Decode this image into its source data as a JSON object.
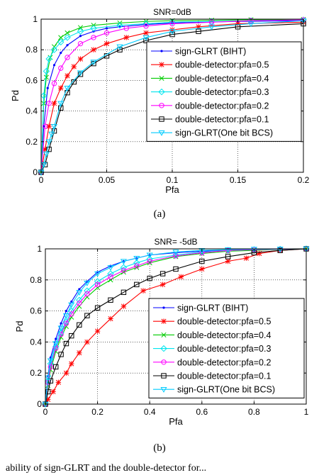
{
  "chart_data": [
    {
      "type": "line",
      "title": "SNR=0dB",
      "xlabel": "Pfa",
      "ylabel": "Pd",
      "xlim": [
        0,
        0.2
      ],
      "ylim": [
        0,
        1
      ],
      "xticks": [
        0,
        0.05,
        0.1,
        0.15,
        0.2
      ],
      "xtick_labels": [
        "0",
        "0.05",
        "0.1",
        "0.15",
        "0.2"
      ],
      "yticks": [
        0,
        0.2,
        0.4,
        0.6,
        0.8,
        1
      ],
      "ytick_labels": [
        "0",
        "0.2",
        "0.4",
        "0.6",
        "0.8",
        "1"
      ],
      "grid": true,
      "legend_position": "right",
      "caption": "(a)",
      "series": [
        {
          "name": "sign-GLRT (BIHT)",
          "color": "#0000ff",
          "marker": "dot",
          "x": [
            0,
            0.002,
            0.005,
            0.01,
            0.015,
            0.02,
            0.03,
            0.04,
            0.05,
            0.06,
            0.08,
            0.1,
            0.12,
            0.15,
            0.2
          ],
          "y": [
            0,
            0.3,
            0.55,
            0.7,
            0.78,
            0.83,
            0.89,
            0.92,
            0.94,
            0.95,
            0.965,
            0.975,
            0.98,
            0.985,
            0.99
          ]
        },
        {
          "name": "double-detector:pfa=0.5",
          "color": "#ff0000",
          "marker": "star",
          "x": [
            0,
            0.003,
            0.006,
            0.01,
            0.015,
            0.02,
            0.025,
            0.03,
            0.04,
            0.05,
            0.065,
            0.08,
            0.1,
            0.12,
            0.15,
            0.2
          ],
          "y": [
            0,
            0.15,
            0.3,
            0.45,
            0.55,
            0.63,
            0.69,
            0.74,
            0.8,
            0.84,
            0.88,
            0.91,
            0.93,
            0.95,
            0.97,
            0.98
          ]
        },
        {
          "name": "double-detector:pfa=0.4",
          "color": "#00cc00",
          "marker": "x",
          "x": [
            0,
            0.002,
            0.004,
            0.007,
            0.01,
            0.015,
            0.02,
            0.03,
            0.04,
            0.06,
            0.08,
            0.1,
            0.13,
            0.16,
            0.2
          ],
          "y": [
            0,
            0.45,
            0.62,
            0.75,
            0.82,
            0.88,
            0.91,
            0.945,
            0.96,
            0.975,
            0.985,
            0.99,
            0.993,
            0.996,
            0.998
          ]
        },
        {
          "name": "double-detector:pfa=0.3",
          "color": "#00e5ee",
          "marker": "diamond",
          "x": [
            0,
            0.002,
            0.004,
            0.006,
            0.01,
            0.015,
            0.02,
            0.03,
            0.04,
            0.06,
            0.08,
            0.1,
            0.13,
            0.16,
            0.2
          ],
          "y": [
            0,
            0.5,
            0.66,
            0.74,
            0.8,
            0.85,
            0.88,
            0.92,
            0.94,
            0.96,
            0.97,
            0.98,
            0.985,
            0.99,
            0.995
          ]
        },
        {
          "name": "double-detector:pfa=0.2",
          "color": "#ff00ff",
          "marker": "circle",
          "x": [
            0,
            0.003,
            0.006,
            0.01,
            0.015,
            0.02,
            0.03,
            0.04,
            0.05,
            0.065,
            0.08,
            0.1,
            0.13,
            0.16,
            0.2
          ],
          "y": [
            0,
            0.3,
            0.45,
            0.58,
            0.68,
            0.75,
            0.84,
            0.88,
            0.91,
            0.94,
            0.955,
            0.97,
            0.98,
            0.99,
            0.995
          ]
        },
        {
          "name": "double-detector:pfa=0.1",
          "color": "#000000",
          "marker": "square",
          "x": [
            0,
            0.003,
            0.006,
            0.01,
            0.015,
            0.02,
            0.025,
            0.03,
            0.04,
            0.05,
            0.06,
            0.08,
            0.1,
            0.12,
            0.15,
            0.2
          ],
          "y": [
            0,
            0.05,
            0.15,
            0.27,
            0.42,
            0.52,
            0.59,
            0.64,
            0.71,
            0.76,
            0.8,
            0.86,
            0.9,
            0.92,
            0.95,
            0.97
          ]
        },
        {
          "name": "sign-GLRT(One bit BCS)",
          "color": "#00ccff",
          "marker": "triangle-down",
          "x": [
            0,
            0.002,
            0.004,
            0.006,
            0.008,
            0.01,
            0.015,
            0.02,
            0.03,
            0.04,
            0.06,
            0.08,
            0.1,
            0.13,
            0.16,
            0.2
          ],
          "y": [
            0,
            0.05,
            0.12,
            0.2,
            0.25,
            0.3,
            0.45,
            0.55,
            0.65,
            0.72,
            0.82,
            0.88,
            0.92,
            0.95,
            0.97,
            0.99
          ]
        }
      ]
    },
    {
      "type": "line",
      "title": "SNR= -5dB",
      "xlabel": "Pfa",
      "ylabel": "Pd",
      "xlim": [
        0,
        1
      ],
      "ylim": [
        0,
        1
      ],
      "xticks": [
        0,
        0.2,
        0.4,
        0.6,
        0.8,
        1
      ],
      "xtick_labels": [
        "0",
        "0.2",
        "0.4",
        "0.6",
        "0.8",
        "1"
      ],
      "yticks": [
        0,
        0.2,
        0.4,
        0.6,
        0.8,
        1
      ],
      "ytick_labels": [
        "0",
        "0.2",
        "0.4",
        "0.6",
        "0.8",
        "1"
      ],
      "grid": true,
      "legend_position": "right",
      "caption": "(b)",
      "series": [
        {
          "name": "sign-GLRT (BIHT)",
          "color": "#0000ff",
          "marker": "dot",
          "x": [
            0,
            0.01,
            0.02,
            0.04,
            0.06,
            0.08,
            0.1,
            0.13,
            0.16,
            0.2,
            0.25,
            0.3,
            0.35,
            0.4,
            0.5,
            0.6,
            0.7,
            0.8,
            0.9,
            1
          ],
          "y": [
            0,
            0.18,
            0.3,
            0.42,
            0.52,
            0.6,
            0.66,
            0.74,
            0.79,
            0.85,
            0.89,
            0.92,
            0.94,
            0.96,
            0.975,
            0.985,
            0.99,
            0.995,
            0.998,
            1
          ]
        },
        {
          "name": "double-detector:pfa=0.5",
          "color": "#ff0000",
          "marker": "star",
          "x": [
            0,
            0.01,
            0.03,
            0.05,
            0.08,
            0.1,
            0.13,
            0.16,
            0.2,
            0.25,
            0.3,
            0.375,
            0.45,
            0.52,
            0.6,
            0.7,
            0.77,
            0.82,
            0.9,
            1
          ],
          "y": [
            0,
            0.03,
            0.08,
            0.14,
            0.2,
            0.26,
            0.33,
            0.4,
            0.47,
            0.55,
            0.63,
            0.73,
            0.77,
            0.82,
            0.87,
            0.92,
            0.94,
            0.97,
            0.99,
            1
          ]
        },
        {
          "name": "double-detector:pfa=0.4",
          "color": "#00cc00",
          "marker": "x",
          "x": [
            0,
            0.01,
            0.02,
            0.04,
            0.06,
            0.08,
            0.1,
            0.13,
            0.16,
            0.2,
            0.25,
            0.3,
            0.35,
            0.4,
            0.5,
            0.6,
            0.7,
            0.8,
            0.9,
            1
          ],
          "y": [
            0,
            0.12,
            0.22,
            0.34,
            0.43,
            0.5,
            0.56,
            0.63,
            0.69,
            0.75,
            0.8,
            0.85,
            0.88,
            0.91,
            0.95,
            0.97,
            0.985,
            0.99,
            0.997,
            1
          ]
        },
        {
          "name": "double-detector:pfa=0.3",
          "color": "#00e5ee",
          "marker": "diamond",
          "x": [
            0,
            0.01,
            0.02,
            0.04,
            0.06,
            0.08,
            0.1,
            0.13,
            0.16,
            0.2,
            0.25,
            0.3,
            0.35,
            0.4,
            0.5,
            0.6,
            0.7,
            0.8,
            0.9,
            1
          ],
          "y": [
            0,
            0.15,
            0.26,
            0.37,
            0.46,
            0.53,
            0.6,
            0.67,
            0.73,
            0.79,
            0.84,
            0.88,
            0.91,
            0.935,
            0.96,
            0.98,
            0.99,
            0.995,
            0.998,
            1
          ]
        },
        {
          "name": "double-detector:pfa=0.2",
          "color": "#ff00ff",
          "marker": "circle",
          "x": [
            0,
            0.01,
            0.02,
            0.04,
            0.06,
            0.08,
            0.1,
            0.13,
            0.16,
            0.2,
            0.25,
            0.3,
            0.35,
            0.4,
            0.5,
            0.6,
            0.7,
            0.8,
            0.9,
            1
          ],
          "y": [
            0,
            0.14,
            0.24,
            0.36,
            0.45,
            0.52,
            0.58,
            0.65,
            0.71,
            0.77,
            0.82,
            0.86,
            0.89,
            0.92,
            0.955,
            0.975,
            0.99,
            0.995,
            0.998,
            1
          ]
        },
        {
          "name": "double-detector:pfa=0.1",
          "color": "#000000",
          "marker": "square",
          "x": [
            0,
            0.01,
            0.02,
            0.04,
            0.06,
            0.08,
            0.1,
            0.13,
            0.16,
            0.2,
            0.25,
            0.3,
            0.35,
            0.4,
            0.45,
            0.5,
            0.6,
            0.7,
            0.8,
            0.9,
            1
          ],
          "y": [
            0,
            0.08,
            0.15,
            0.24,
            0.32,
            0.39,
            0.44,
            0.51,
            0.57,
            0.62,
            0.67,
            0.72,
            0.77,
            0.81,
            0.84,
            0.87,
            0.92,
            0.95,
            0.975,
            0.99,
            1
          ]
        },
        {
          "name": "sign-GLRT(One bit BCS)",
          "color": "#00ccff",
          "marker": "triangle-down",
          "x": [
            0,
            0.01,
            0.02,
            0.04,
            0.06,
            0.08,
            0.1,
            0.13,
            0.16,
            0.2,
            0.25,
            0.3,
            0.35,
            0.4,
            0.5,
            0.6,
            0.7,
            0.8,
            0.9,
            1
          ],
          "y": [
            0,
            0.17,
            0.28,
            0.39,
            0.49,
            0.57,
            0.64,
            0.72,
            0.78,
            0.84,
            0.88,
            0.92,
            0.94,
            0.96,
            0.98,
            0.99,
            0.995,
            0.998,
            0.999,
            1
          ]
        }
      ]
    }
  ],
  "bottom_text": "ability of sign-GLRT and the double-detector for..."
}
